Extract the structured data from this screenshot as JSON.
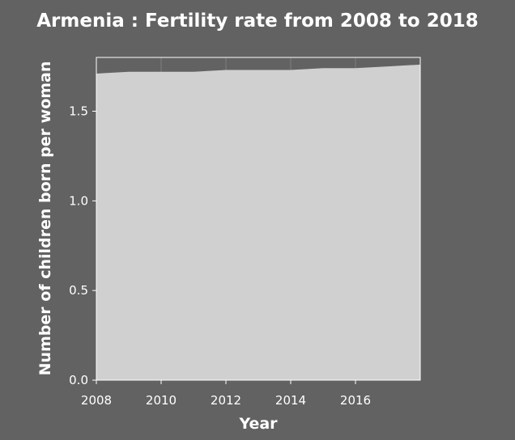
{
  "chart_data": {
    "type": "area",
    "title": "Armenia : Fertility rate from 2008 to 2018",
    "xlabel": "Year",
    "ylabel": "Number of children born per woman",
    "x": [
      2008,
      2009,
      2010,
      2011,
      2012,
      2013,
      2014,
      2015,
      2016,
      2017,
      2018
    ],
    "values": [
      1.71,
      1.72,
      1.72,
      1.72,
      1.73,
      1.73,
      1.73,
      1.74,
      1.74,
      1.75,
      1.76
    ],
    "xlim": [
      2008,
      2018
    ],
    "ylim": [
      0,
      1.8
    ],
    "xticks": [
      2008,
      2010,
      2012,
      2014,
      2016
    ],
    "yticks": [
      0,
      0.5,
      1,
      1.5
    ],
    "xtick_labels": [
      "2008",
      "2010",
      "2012",
      "2014",
      "2016"
    ],
    "ytick_labels": [
      "0.0",
      "0.5",
      "1.0",
      "1.5"
    ],
    "grid": true,
    "colors": {
      "background": "#626262",
      "plot_background": "#626262",
      "fill": "#d0d0d0",
      "axis": "#ffffff",
      "grid": "#7f7f7f",
      "text": "#ffffff"
    }
  }
}
